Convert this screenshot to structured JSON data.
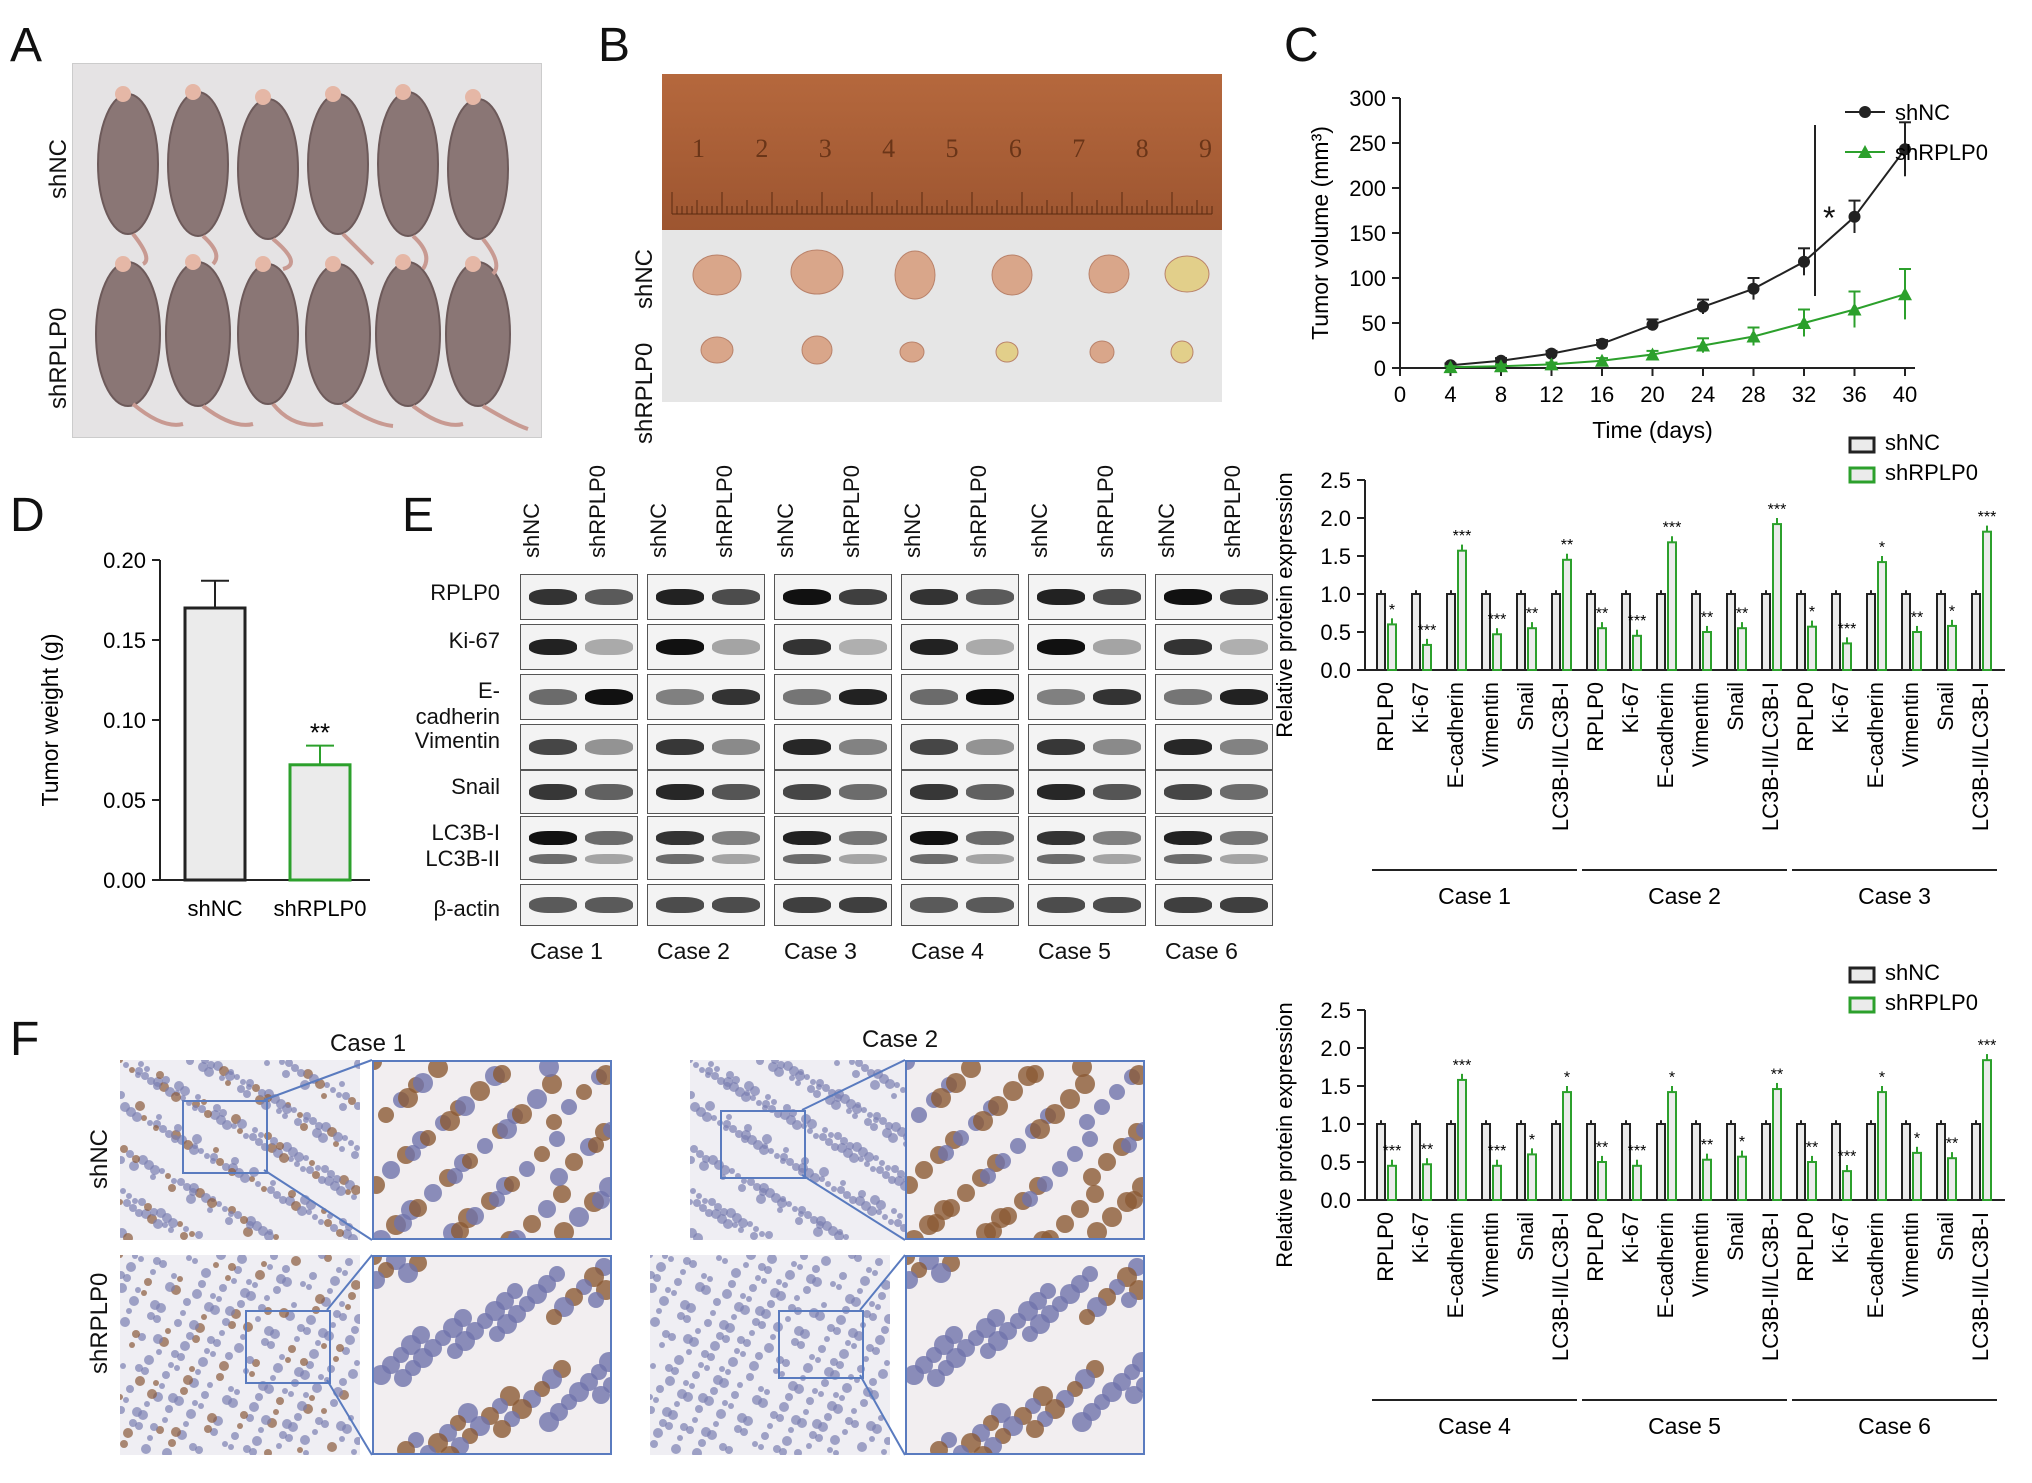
{
  "panels": {
    "A": {
      "label": "A",
      "rows": [
        "shNC",
        "shRPLP0"
      ]
    },
    "B": {
      "label": "B",
      "rows": [
        "shNC",
        "shRPLP0"
      ],
      "ruler_numbers": [
        "1",
        "2",
        "3",
        "4",
        "5",
        "6",
        "7",
        "8",
        "9"
      ]
    },
    "C": {
      "label": "C",
      "significance": "*"
    },
    "D": {
      "label": "D"
    },
    "E": {
      "label": "E",
      "groups": [
        "shNC",
        "shRPLP0"
      ],
      "proteins": [
        "RPLP0",
        "Ki-67",
        "E-cadherin",
        "Vimentin",
        "Snail",
        "LC3B-I",
        "LC3B-II",
        "β-actin"
      ],
      "cases": [
        "Case 1",
        "Case 2",
        "Case 3",
        "Case 4",
        "Case 5",
        "Case 6"
      ]
    },
    "F": {
      "label": "F",
      "cases": [
        "Case 1",
        "Case 2"
      ],
      "rows": [
        "shNC",
        "shRPLP0"
      ]
    }
  },
  "colors": {
    "shNC": "#222222",
    "shRPLP0": "#2ca02c",
    "ihc_border": "#5a7bbf"
  },
  "chart_data": [
    {
      "id": "C",
      "type": "line",
      "xlabel": "Time (days)",
      "ylabel": "Tumor volume (mm³)",
      "x": [
        4,
        8,
        12,
        16,
        20,
        24,
        28,
        32,
        36,
        40
      ],
      "xticks": [
        0,
        4,
        8,
        12,
        16,
        20,
        24,
        28,
        32,
        36,
        40
      ],
      "yticks": [
        0,
        50,
        100,
        150,
        200,
        250,
        300
      ],
      "ylim": [
        0,
        300
      ],
      "series": [
        {
          "name": "shNC",
          "marker": "circle",
          "values": [
            3,
            8,
            16,
            27,
            48,
            68,
            88,
            118,
            168,
            243
          ],
          "err": [
            2,
            3,
            3,
            4,
            6,
            8,
            12,
            15,
            18,
            30
          ]
        },
        {
          "name": "shRPLP0",
          "marker": "triangle",
          "values": [
            1,
            2,
            4,
            8,
            15,
            25,
            35,
            50,
            65,
            82
          ],
          "err": [
            1,
            2,
            2,
            3,
            4,
            8,
            10,
            15,
            20,
            28
          ]
        }
      ],
      "legend": "top-right"
    },
    {
      "id": "D",
      "type": "bar",
      "ylabel": "Tumor weight (g)",
      "categories": [
        "shNC",
        "shRPLP0"
      ],
      "values": [
        0.17,
        0.072
      ],
      "err": [
        0.017,
        0.012
      ],
      "annotations": [
        "",
        "**"
      ],
      "yticks": [
        "0.00",
        "0.05",
        "0.10",
        "0.15",
        "0.20"
      ],
      "ylim": [
        0,
        0.2
      ]
    },
    {
      "id": "E-top",
      "type": "bar",
      "ylabel": "Relative protein expression",
      "legend_entries": [
        "shNC",
        "shRPLP0"
      ],
      "categories": [
        "RPLP0",
        "Ki-67",
        "E-cadherin",
        "Vimentin",
        "Snail",
        "LC3B-II/LC3B-I"
      ],
      "case_labels": [
        "Case 1",
        "Case 2",
        "Case 3"
      ],
      "yticks": [
        "0.0",
        "0.5",
        "1.0",
        "1.5",
        "2.0",
        "2.5"
      ],
      "ylim": [
        0,
        2.5
      ],
      "shNC": [
        1,
        1,
        1,
        1,
        1,
        1,
        1,
        1,
        1,
        1,
        1,
        1,
        1,
        1,
        1,
        1,
        1,
        1
      ],
      "shRPLP0": [
        0.6,
        0.33,
        1.57,
        0.47,
        0.55,
        1.45,
        0.55,
        0.45,
        1.68,
        0.5,
        0.55,
        1.92,
        0.57,
        0.35,
        1.42,
        0.5,
        0.58,
        1.82
      ],
      "sig": [
        "*",
        "***",
        "***",
        "***",
        "**",
        "**",
        "**",
        "***",
        "***",
        "**",
        "**",
        "***",
        "*",
        "***",
        "*",
        "**",
        "*",
        "***"
      ]
    },
    {
      "id": "E-bottom",
      "type": "bar",
      "ylabel": "Relative protein expression",
      "legend_entries": [
        "shNC",
        "shRPLP0"
      ],
      "categories": [
        "RPLP0",
        "Ki-67",
        "E-cadherin",
        "Vimentin",
        "Snail",
        "LC3B-II/LC3B-I"
      ],
      "case_labels": [
        "Case 4",
        "Case 5",
        "Case 6"
      ],
      "yticks": [
        "0.0",
        "0.5",
        "1.0",
        "1.5",
        "2.0",
        "2.5"
      ],
      "ylim": [
        0,
        2.5
      ],
      "shNC": [
        1,
        1,
        1,
        1,
        1,
        1,
        1,
        1,
        1,
        1,
        1,
        1,
        1,
        1,
        1,
        1,
        1,
        1
      ],
      "shRPLP0": [
        0.45,
        0.47,
        1.58,
        0.45,
        0.6,
        1.42,
        0.5,
        0.45,
        1.42,
        0.53,
        0.57,
        1.46,
        0.5,
        0.38,
        1.42,
        0.62,
        0.55,
        1.84
      ],
      "sig": [
        "***",
        "**",
        "***",
        "***",
        "*",
        "*",
        "**",
        "***",
        "*",
        "**",
        "*",
        "**",
        "**",
        "***",
        "*",
        "*",
        "**",
        "***"
      ]
    }
  ]
}
